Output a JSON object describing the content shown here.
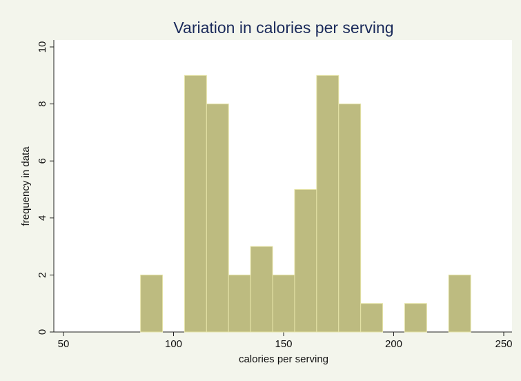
{
  "chart_data": {
    "type": "histogram",
    "title": "Variation in calories per serving",
    "x_label": "calories per serving",
    "y_label": "frequency in data",
    "bins": [
      85,
      95,
      105,
      115,
      125,
      135,
      145,
      155,
      165,
      175,
      185,
      195,
      205,
      215,
      225,
      235
    ],
    "values": [
      2,
      0,
      9,
      8,
      2,
      3,
      2,
      5,
      9,
      8,
      1,
      0,
      1,
      0,
      2
    ],
    "color": "#bdbb80",
    "xlim": [
      50,
      250
    ],
    "xticks": [
      50,
      100,
      150,
      200,
      250
    ],
    "ylim": [
      0,
      10
    ],
    "yticks": [
      0,
      2,
      4,
      6,
      8,
      10
    ]
  }
}
